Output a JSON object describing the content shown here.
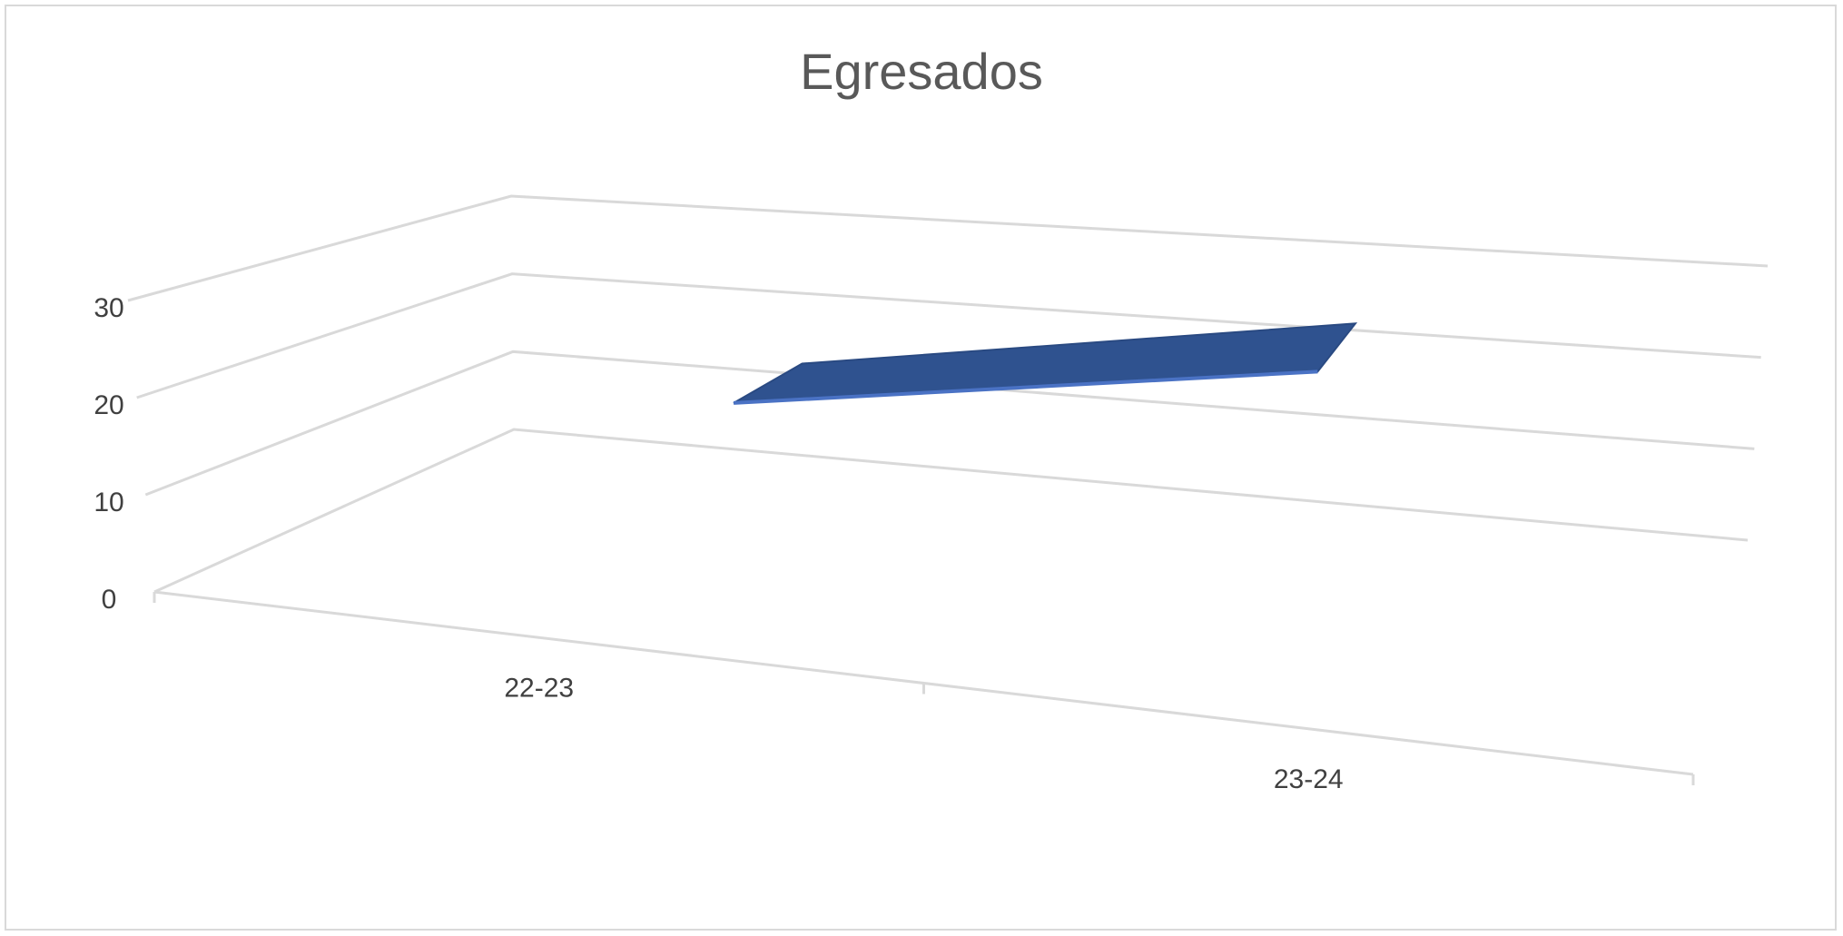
{
  "chart_data": {
    "type": "line",
    "title": "Egresados",
    "categories": [
      "22-23",
      "23-24"
    ],
    "series": [
      {
        "values": [
          20,
          30
        ]
      }
    ],
    "ylim": [
      0,
      30
    ],
    "yticks": [
      "0",
      "10",
      "20",
      "30"
    ],
    "grid": true,
    "legend": "none",
    "colors": {
      "series": "#2f528f",
      "grid": "#d9d9d9",
      "text": "#595959"
    }
  }
}
